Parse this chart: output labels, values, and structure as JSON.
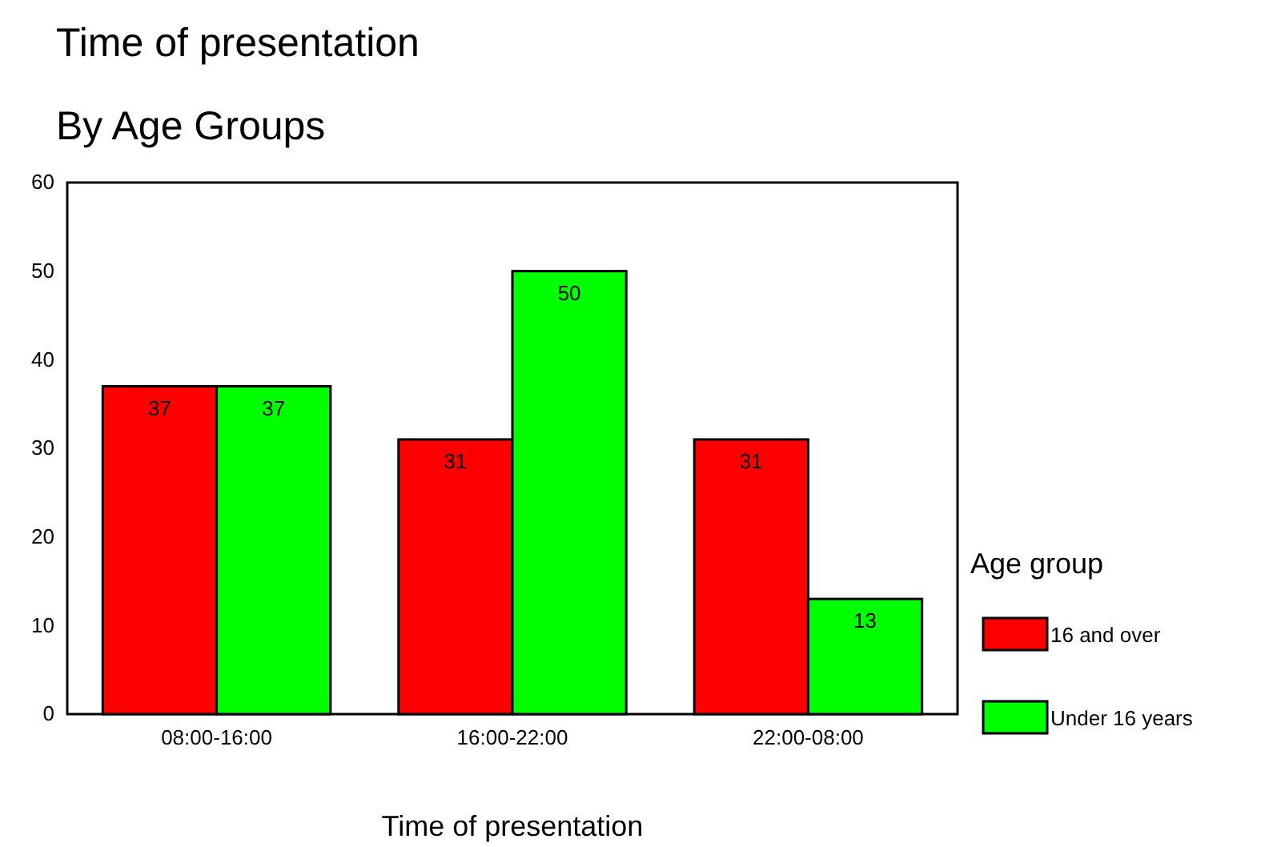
{
  "chart_data": {
    "type": "bar",
    "title": "Time of presentation",
    "subtitle": "By Age Groups",
    "xlabel": "Time of presentation",
    "legend_title": "Age group",
    "categories": [
      "08:00-16:00",
      "16:00-22:00",
      "22:00-08:00"
    ],
    "series": [
      {
        "name": "16 and over",
        "color": "#ff0000",
        "values": [
          37,
          31,
          31
        ]
      },
      {
        "name": "Under 16 years",
        "color": "#00ff00",
        "values": [
          37,
          50,
          13
        ]
      }
    ],
    "ylim": [
      0,
      60
    ],
    "yticks": [
      0,
      10,
      20,
      30,
      40,
      50,
      60
    ],
    "legend": "right",
    "data_labels": true
  }
}
